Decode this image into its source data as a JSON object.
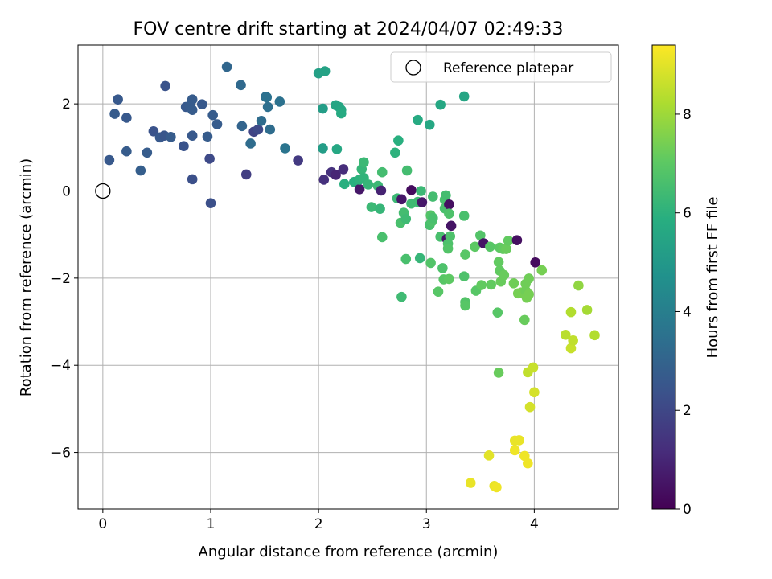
{
  "chart_data": {
    "type": "scatter",
    "title": "FOV centre drift starting at 2024/04/07 02:49:33",
    "xlabel": "Angular distance from reference (arcmin)",
    "ylabel": "Rotation from reference (arcmin)",
    "xlim": [
      -0.23,
      4.78
    ],
    "ylim": [
      -7.3,
      3.35
    ],
    "x_ticks": [
      0,
      1,
      2,
      3,
      4
    ],
    "y_ticks": [
      -6,
      -4,
      -2,
      0,
      2
    ],
    "x_tick_labels": [
      "0",
      "1",
      "2",
      "3",
      "4"
    ],
    "y_tick_labels": [
      "−6",
      "−4",
      "−2",
      "0",
      "2"
    ],
    "grid": true,
    "legend": {
      "placement": "top-right",
      "entries": [
        {
          "label": "Reference platepar",
          "marker": "open-circle"
        }
      ]
    },
    "reference_point": {
      "x": 0,
      "y": 0
    },
    "colorbar": {
      "label": "Hours from first FF file",
      "colormap": "viridis",
      "range": [
        0,
        9.4
      ],
      "ticks": [
        0,
        2,
        4,
        6,
        8
      ],
      "tick_labels": [
        "0",
        "2",
        "4",
        "6",
        "8"
      ]
    },
    "points": [
      {
        "x": 0.06,
        "y": 0.71,
        "c": 2.6
      },
      {
        "x": 0.11,
        "y": 1.77,
        "c": 2.7
      },
      {
        "x": 0.14,
        "y": 2.1,
        "c": 2.6
      },
      {
        "x": 0.22,
        "y": 0.91,
        "c": 2.7
      },
      {
        "x": 0.22,
        "y": 1.68,
        "c": 2.6
      },
      {
        "x": 0.35,
        "y": 0.47,
        "c": 2.8
      },
      {
        "x": 0.41,
        "y": 0.88,
        "c": 2.7
      },
      {
        "x": 0.47,
        "y": 1.37,
        "c": 2.4
      },
      {
        "x": 0.53,
        "y": 1.23,
        "c": 2.6
      },
      {
        "x": 0.57,
        "y": 1.27,
        "c": 2.5
      },
      {
        "x": 0.58,
        "y": 2.41,
        "c": 2.4
      },
      {
        "x": 0.63,
        "y": 1.24,
        "c": 2.7
      },
      {
        "x": 0.75,
        "y": 1.03,
        "c": 2.4
      },
      {
        "x": 0.77,
        "y": 1.93,
        "c": 2.6
      },
      {
        "x": 0.81,
        "y": 1.96,
        "c": 2.7
      },
      {
        "x": 0.83,
        "y": 2.1,
        "c": 2.7
      },
      {
        "x": 0.83,
        "y": 1.86,
        "c": 2.7
      },
      {
        "x": 0.83,
        "y": 1.27,
        "c": 2.6
      },
      {
        "x": 0.83,
        "y": 0.27,
        "c": 2.3
      },
      {
        "x": 0.92,
        "y": 1.99,
        "c": 2.6
      },
      {
        "x": 0.97,
        "y": 1.25,
        "c": 2.7
      },
      {
        "x": 0.99,
        "y": 0.74,
        "c": 2.1
      },
      {
        "x": 1.0,
        "y": -0.28,
        "c": 2.3
      },
      {
        "x": 1.02,
        "y": 1.74,
        "c": 2.7
      },
      {
        "x": 1.06,
        "y": 1.53,
        "c": 2.7
      },
      {
        "x": 1.15,
        "y": 2.85,
        "c": 3.1
      },
      {
        "x": 1.28,
        "y": 2.43,
        "c": 3.2
      },
      {
        "x": 1.29,
        "y": 1.49,
        "c": 3.0
      },
      {
        "x": 1.33,
        "y": 0.38,
        "c": 1.7
      },
      {
        "x": 1.37,
        "y": 1.09,
        "c": 3.3
      },
      {
        "x": 1.4,
        "y": 1.36,
        "c": 1.9
      },
      {
        "x": 1.44,
        "y": 1.41,
        "c": 2.1
      },
      {
        "x": 1.47,
        "y": 1.61,
        "c": 3.3
      },
      {
        "x": 1.51,
        "y": 2.16,
        "c": 3.4
      },
      {
        "x": 1.52,
        "y": 2.15,
        "c": 3.5
      },
      {
        "x": 1.53,
        "y": 1.93,
        "c": 3.4
      },
      {
        "x": 1.55,
        "y": 1.41,
        "c": 3.3
      },
      {
        "x": 1.64,
        "y": 2.05,
        "c": 3.5
      },
      {
        "x": 1.69,
        "y": 0.98,
        "c": 3.6
      },
      {
        "x": 1.81,
        "y": 0.7,
        "c": 1.6
      },
      {
        "x": 2.0,
        "y": 2.7,
        "c": 5.3
      },
      {
        "x": 2.04,
        "y": 1.89,
        "c": 5.2
      },
      {
        "x": 2.04,
        "y": 0.98,
        "c": 5.2
      },
      {
        "x": 2.05,
        "y": 0.26,
        "c": 1.3
      },
      {
        "x": 2.06,
        "y": 2.75,
        "c": 5.4
      },
      {
        "x": 2.12,
        "y": 0.43,
        "c": 1.3
      },
      {
        "x": 2.16,
        "y": 0.37,
        "c": 1.0
      },
      {
        "x": 2.16,
        "y": 1.97,
        "c": 5.5
      },
      {
        "x": 2.17,
        "y": 0.96,
        "c": 5.6
      },
      {
        "x": 2.19,
        "y": 1.93,
        "c": 5.5
      },
      {
        "x": 2.21,
        "y": 1.86,
        "c": 5.6
      },
      {
        "x": 2.21,
        "y": 1.78,
        "c": 5.7
      },
      {
        "x": 2.23,
        "y": 0.5,
        "c": 1.2
      },
      {
        "x": 2.24,
        "y": 0.16,
        "c": 5.9
      },
      {
        "x": 2.33,
        "y": 0.21,
        "c": 5.9
      },
      {
        "x": 2.38,
        "y": 0.04,
        "c": 0.6
      },
      {
        "x": 2.38,
        "y": 0.26,
        "c": 6.0
      },
      {
        "x": 2.4,
        "y": 0.5,
        "c": 6.2
      },
      {
        "x": 2.42,
        "y": 0.66,
        "c": 6.3
      },
      {
        "x": 2.42,
        "y": 0.3,
        "c": 6.1
      },
      {
        "x": 2.46,
        "y": 0.15,
        "c": 6.2
      },
      {
        "x": 2.49,
        "y": -0.37,
        "c": 6.3
      },
      {
        "x": 2.55,
        "y": 0.12,
        "c": 6.3
      },
      {
        "x": 2.57,
        "y": -0.41,
        "c": 6.2
      },
      {
        "x": 2.58,
        "y": 0.01,
        "c": 0.9
      },
      {
        "x": 2.59,
        "y": -1.06,
        "c": 6.6
      },
      {
        "x": 2.59,
        "y": 0.43,
        "c": 6.5
      },
      {
        "x": 2.71,
        "y": 0.88,
        "c": 6.0
      },
      {
        "x": 2.73,
        "y": -0.17,
        "c": 6.3
      },
      {
        "x": 2.74,
        "y": 1.16,
        "c": 5.9
      },
      {
        "x": 2.76,
        "y": -0.73,
        "c": 6.6
      },
      {
        "x": 2.77,
        "y": -0.19,
        "c": 0.6
      },
      {
        "x": 2.77,
        "y": -2.43,
        "c": 6.4
      },
      {
        "x": 2.79,
        "y": -0.5,
        "c": 6.5
      },
      {
        "x": 2.81,
        "y": -0.64,
        "c": 6.4
      },
      {
        "x": 2.81,
        "y": -1.56,
        "c": 6.6
      },
      {
        "x": 2.82,
        "y": 0.47,
        "c": 6.5
      },
      {
        "x": 2.86,
        "y": 0.02,
        "c": 0.3
      },
      {
        "x": 2.86,
        "y": -0.29,
        "c": 6.4
      },
      {
        "x": 2.92,
        "y": 1.63,
        "c": 5.7
      },
      {
        "x": 2.92,
        "y": -0.25,
        "c": 6.4
      },
      {
        "x": 2.94,
        "y": -1.54,
        "c": 6.2
      },
      {
        "x": 2.95,
        "y": 0.0,
        "c": 6.3
      },
      {
        "x": 2.96,
        "y": -0.26,
        "c": 0.6
      },
      {
        "x": 3.03,
        "y": 1.52,
        "c": 5.6
      },
      {
        "x": 3.03,
        "y": -0.78,
        "c": 6.6
      },
      {
        "x": 3.04,
        "y": -0.56,
        "c": 6.8
      },
      {
        "x": 3.04,
        "y": -1.65,
        "c": 6.8
      },
      {
        "x": 3.05,
        "y": -0.7,
        "c": 6.7
      },
      {
        "x": 3.06,
        "y": -0.13,
        "c": 6.5
      },
      {
        "x": 3.06,
        "y": -0.62,
        "c": 6.6
      },
      {
        "x": 3.11,
        "y": -2.31,
        "c": 6.9
      },
      {
        "x": 3.13,
        "y": 1.98,
        "c": 5.6
      },
      {
        "x": 3.13,
        "y": -1.05,
        "c": 6.6
      },
      {
        "x": 3.15,
        "y": -1.77,
        "c": 6.7
      },
      {
        "x": 3.16,
        "y": -2.03,
        "c": 6.9
      },
      {
        "x": 3.17,
        "y": -0.4,
        "c": 6.6
      },
      {
        "x": 3.17,
        "y": -0.2,
        "c": 6.6
      },
      {
        "x": 3.18,
        "y": -0.1,
        "c": 6.5
      },
      {
        "x": 3.19,
        "y": -1.1,
        "c": 0.5
      },
      {
        "x": 3.2,
        "y": -1.21,
        "c": 6.7
      },
      {
        "x": 3.2,
        "y": -1.32,
        "c": 6.8
      },
      {
        "x": 3.21,
        "y": -0.31,
        "c": 0.4
      },
      {
        "x": 3.21,
        "y": -0.52,
        "c": 6.7
      },
      {
        "x": 3.21,
        "y": -2.02,
        "c": 7.0
      },
      {
        "x": 3.22,
        "y": -1.04,
        "c": 6.7
      },
      {
        "x": 3.23,
        "y": -0.8,
        "c": 0.5
      },
      {
        "x": 3.35,
        "y": 2.17,
        "c": 5.5
      },
      {
        "x": 3.35,
        "y": -0.57,
        "c": 6.6
      },
      {
        "x": 3.35,
        "y": -1.96,
        "c": 6.7
      },
      {
        "x": 3.36,
        "y": -2.55,
        "c": 6.8
      },
      {
        "x": 3.36,
        "y": -2.63,
        "c": 6.9
      },
      {
        "x": 3.36,
        "y": -1.46,
        "c": 6.9
      },
      {
        "x": 3.41,
        "y": -6.7,
        "c": 9.1
      },
      {
        "x": 3.45,
        "y": -1.28,
        "c": 7.0
      },
      {
        "x": 3.46,
        "y": -2.29,
        "c": 6.9
      },
      {
        "x": 3.5,
        "y": -1.02,
        "c": 6.8
      },
      {
        "x": 3.51,
        "y": -2.16,
        "c": 7.1
      },
      {
        "x": 3.53,
        "y": -1.2,
        "c": 0.5
      },
      {
        "x": 3.58,
        "y": -6.07,
        "c": 9.0
      },
      {
        "x": 3.59,
        "y": -1.28,
        "c": 6.9
      },
      {
        "x": 3.6,
        "y": -2.15,
        "c": 7.1
      },
      {
        "x": 3.63,
        "y": -6.77,
        "c": 9.1
      },
      {
        "x": 3.65,
        "y": -6.8,
        "c": 9.2
      },
      {
        "x": 3.66,
        "y": -2.79,
        "c": 6.9
      },
      {
        "x": 3.67,
        "y": -4.17,
        "c": 7.2
      },
      {
        "x": 3.67,
        "y": -1.63,
        "c": 7.1
      },
      {
        "x": 3.68,
        "y": -1.3,
        "c": 7.0
      },
      {
        "x": 3.68,
        "y": -1.83,
        "c": 7.1
      },
      {
        "x": 3.69,
        "y": -2.08,
        "c": 7.2
      },
      {
        "x": 3.71,
        "y": -1.33,
        "c": 7.1
      },
      {
        "x": 3.72,
        "y": -1.93,
        "c": 7.2
      },
      {
        "x": 3.74,
        "y": -1.33,
        "c": 7.2
      },
      {
        "x": 3.76,
        "y": -1.14,
        "c": 7.1
      },
      {
        "x": 3.81,
        "y": -2.12,
        "c": 7.3
      },
      {
        "x": 3.82,
        "y": -5.95,
        "c": 9.2
      },
      {
        "x": 3.82,
        "y": -5.73,
        "c": 9.1
      },
      {
        "x": 3.84,
        "y": -1.13,
        "c": 0.4
      },
      {
        "x": 3.85,
        "y": -2.35,
        "c": 7.4
      },
      {
        "x": 3.86,
        "y": -5.72,
        "c": 9.1
      },
      {
        "x": 3.88,
        "y": -2.33,
        "c": 7.4
      },
      {
        "x": 3.91,
        "y": -2.96,
        "c": 7.2
      },
      {
        "x": 3.91,
        "y": -6.08,
        "c": 9.2
      },
      {
        "x": 3.92,
        "y": -2.13,
        "c": 7.3
      },
      {
        "x": 3.92,
        "y": -2.29,
        "c": 7.3
      },
      {
        "x": 3.93,
        "y": -2.45,
        "c": 7.4
      },
      {
        "x": 3.94,
        "y": -6.25,
        "c": 9.2
      },
      {
        "x": 3.94,
        "y": -4.16,
        "c": 8.5
      },
      {
        "x": 3.95,
        "y": -2.01,
        "c": 7.3
      },
      {
        "x": 3.95,
        "y": -2.37,
        "c": 7.4
      },
      {
        "x": 3.96,
        "y": -4.96,
        "c": 8.8
      },
      {
        "x": 3.99,
        "y": -4.05,
        "c": 8.6
      },
      {
        "x": 4.0,
        "y": -4.62,
        "c": 8.8
      },
      {
        "x": 4.01,
        "y": -1.64,
        "c": 0.3
      },
      {
        "x": 4.07,
        "y": -1.82,
        "c": 7.4
      },
      {
        "x": 4.29,
        "y": -3.3,
        "c": 8.4
      },
      {
        "x": 4.34,
        "y": -2.78,
        "c": 8.3
      },
      {
        "x": 4.34,
        "y": -3.61,
        "c": 8.6
      },
      {
        "x": 4.36,
        "y": -3.43,
        "c": 8.5
      },
      {
        "x": 4.41,
        "y": -2.17,
        "c": 7.8
      },
      {
        "x": 4.49,
        "y": -2.73,
        "c": 8.1
      },
      {
        "x": 4.56,
        "y": -3.31,
        "c": 8.3
      }
    ]
  }
}
